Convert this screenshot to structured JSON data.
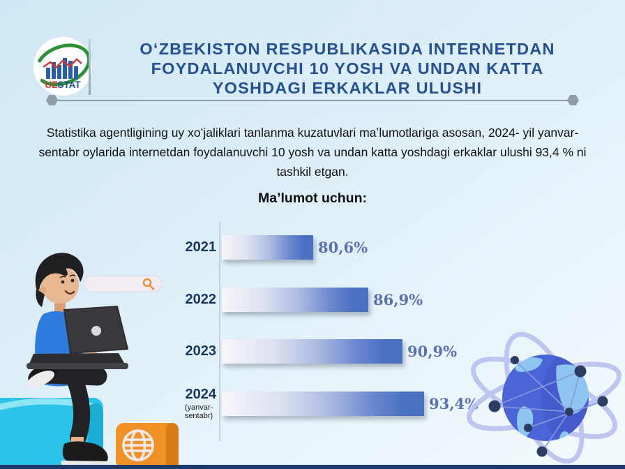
{
  "header": {
    "logo": {
      "uz": "UZ",
      "stat": "STAT"
    },
    "title_lines": [
      "OʻZBEKISTON RESPUBLIKASIDA INTERNETDAN",
      "FOYDALANUVCHI 10 YOSH VA UNDAN KATTA",
      "YOSHDAGI ERKAKLAR ULUSHI"
    ]
  },
  "intro": {
    "text": "Statistika agentligining uy xoʻjaliklari tanlanma kuzatuvlari maʼlumotlariga asosan, 2024- yil yanvar-sentabr oylarida internetdan foydalanuvchi 10 yosh va undan katta yoshdagi erkaklar ulushi 93,4 % ni tashkil etgan."
  },
  "chart_data": {
    "type": "bar",
    "orientation": "horizontal",
    "title": "Maʼlumot uchun:",
    "categories": [
      "2021",
      "2022",
      "2023",
      "2024"
    ],
    "category_notes": [
      "",
      "",
      "",
      "(yanvar-sentabr)"
    ],
    "values": [
      80.6,
      86.9,
      90.9,
      93.4
    ],
    "value_labels": [
      "80,6%",
      "86,9%",
      "90,9%",
      "93,4%"
    ],
    "unit": "%",
    "xlim": [
      70,
      95
    ],
    "grid": false,
    "legend": "none",
    "bar_color": "#4a70c3",
    "bar_gradient_start": "#f7f5f8",
    "value_label_color": "#5b72ae",
    "category_label_color": "#17365c"
  },
  "colors": {
    "title_navy": "#27508f",
    "background_top": "#d0e8f5",
    "background_bottom": "#f2f9fc",
    "footer_navy": "#1d3a6b",
    "logo_green": "#2f9137",
    "logo_red": "#cf3a3a",
    "logo_blue": "#2d5d9d",
    "cube_cyan": "#2cc3e8",
    "cube_orange": "#f09127",
    "globe_blue": "#4b65d7",
    "orbit_lilac": "#bcc4ef"
  },
  "icons": {
    "search": "search-icon",
    "globe": "globe-icon",
    "chart_logo": "uzstat-logo"
  }
}
